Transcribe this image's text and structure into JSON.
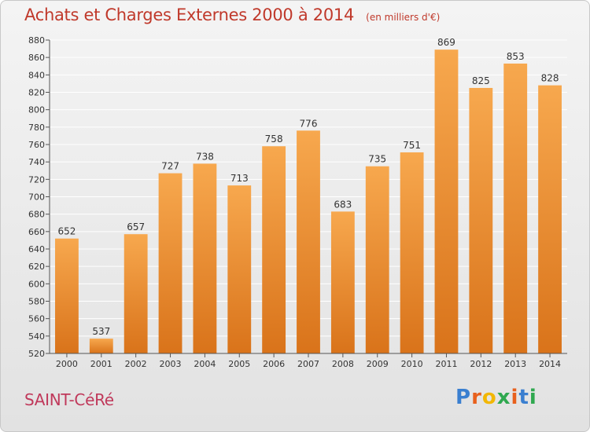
{
  "title": "Achats et Charges Externes 2000 à 2014",
  "subtitle": "(en milliers d'€)",
  "commune": "SAINT-CéRé",
  "brand": {
    "letters": [
      "P",
      "r",
      "o",
      "x",
      "i",
      "t",
      "i"
    ],
    "colors": [
      "#3a7fd0",
      "#e8601c",
      "#f2b705",
      "#2fa84f",
      "#e8601c",
      "#3a7fd0",
      "#2fa84f"
    ]
  },
  "colors": {
    "title": "#c0392b",
    "bar_top": "#f7a84e",
    "bar_bottom": "#d9731a",
    "grid": "#ffffff"
  },
  "chart_data": {
    "type": "bar",
    "categories": [
      "2000",
      "2001",
      "2002",
      "2003",
      "2004",
      "2005",
      "2006",
      "2007",
      "2008",
      "2009",
      "2010",
      "2011",
      "2012",
      "2013",
      "2014"
    ],
    "values": [
      652,
      537,
      657,
      727,
      738,
      713,
      758,
      776,
      683,
      735,
      751,
      869,
      825,
      853,
      828
    ],
    "title": "Achats et Charges Externes 2000 à 2014",
    "subtitle": "(en milliers d'€)",
    "ylim": [
      520,
      880
    ],
    "yticks": [
      520,
      540,
      560,
      580,
      600,
      620,
      640,
      660,
      680,
      700,
      720,
      740,
      760,
      780,
      800,
      820,
      840,
      860,
      880
    ],
    "grid": true,
    "data_labels": true
  }
}
